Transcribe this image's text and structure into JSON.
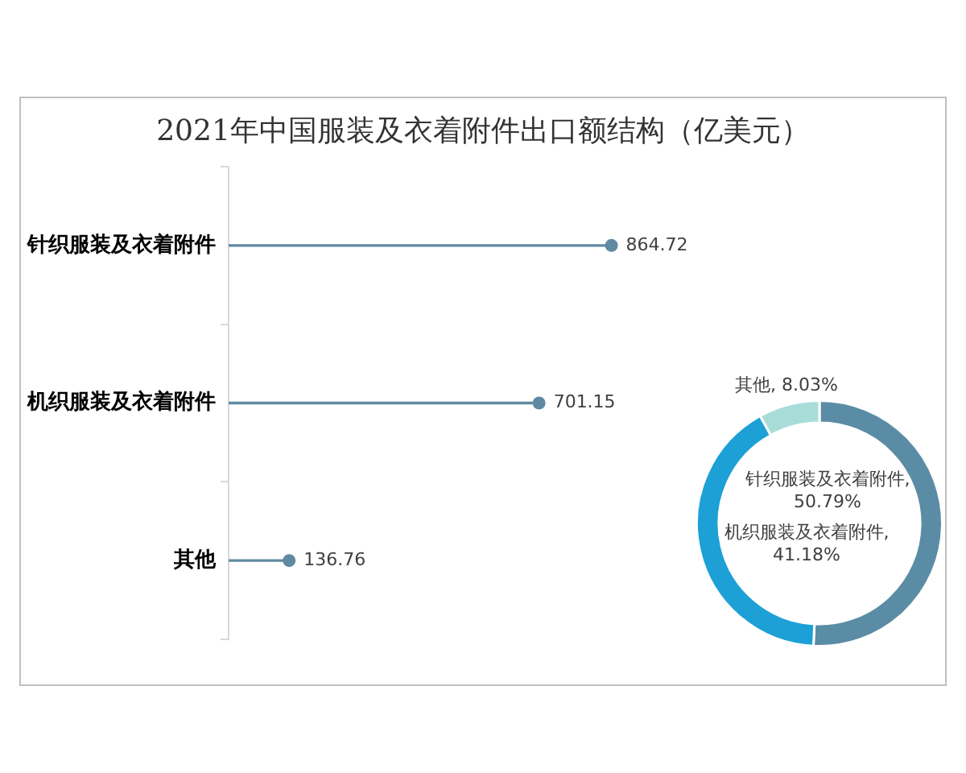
{
  "chart_data": [
    {
      "type": "lollipop",
      "title": "2021年中国服装及衣着附件出口额结构（亿美元）",
      "orientation": "horizontal",
      "categories": [
        "针织服装及衣着附件",
        "机织服装及衣着附件",
        "其他"
      ],
      "values": [
        864.72,
        701.15,
        136.76
      ],
      "color": "#5f8aa1",
      "marker": "circle",
      "data_labels": true,
      "tick_labels": "y"
    },
    {
      "type": "donut",
      "categories": [
        "针织服装及衣着附件",
        "机织服装及衣着附件",
        "其他"
      ],
      "values": [
        50.79,
        41.18,
        8.03
      ],
      "colors": [
        "#5b8ca5",
        "#1ca0d6",
        "#a8dcd9"
      ],
      "value_labels": [
        ", 50.79%",
        ", 41.18%",
        ", 8.03%"
      ]
    }
  ]
}
